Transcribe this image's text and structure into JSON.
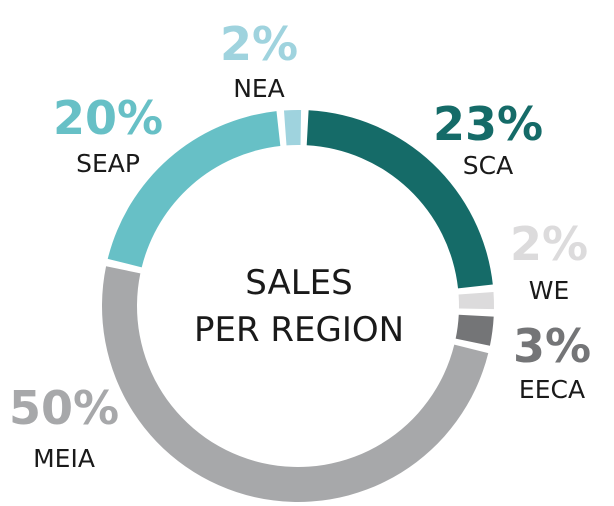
{
  "chart_data": {
    "type": "pie",
    "style": "donut",
    "title": "SALES PER REGION",
    "title_lines": [
      "SALES",
      "PER REGION"
    ],
    "slices": [
      {
        "label": "SCA",
        "value": 23,
        "value_label": "23%",
        "color": "#156b68"
      },
      {
        "label": "WE",
        "value": 2,
        "value_label": "2%",
        "color": "#dcdbdc"
      },
      {
        "label": "EECA",
        "value": 3,
        "value_label": "3%",
        "color": "#747577"
      },
      {
        "label": "MEIA",
        "value": 50,
        "value_label": "50%",
        "color": "#a7a8aa"
      },
      {
        "label": "SEAP",
        "value": 20,
        "value_label": "20%",
        "color": "#67c0c6"
      },
      {
        "label": "NEA",
        "value": 2,
        "value_label": "2%",
        "color": "#9fd3de"
      }
    ]
  }
}
